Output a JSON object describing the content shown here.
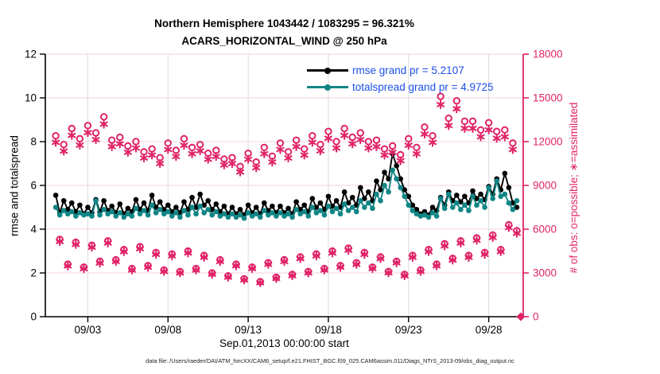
{
  "figure": {
    "title_line1": "Northern Hemisphere 1043442 / 1083295 = 96.321%",
    "title_line2": "ACARS_HORIZONTAL_WIND @ 250 hPa",
    "xlabel": "Sep.01,2013 00:00:00 start",
    "ylabel_left": "rmse and totalspread",
    "ylabel_right": "# of obs: o=possible; ∗=assimilated",
    "caption": "data file: /Users/raeder/DAI/ATM_forcXX/CAM6_setup/f.e21.FHIST_BGC.f09_025.CAM6assim.011/Diags_NTrS_2013-09/obs_diag_output.nc"
  },
  "legend": {
    "position": "top-center-inside",
    "text_color": "#1b50e8",
    "items": [
      {
        "label": "rmse grand pr = 5.2107",
        "color": "#000000"
      },
      {
        "label": "totalspread grand pr = 4.9725",
        "color": "#108585"
      }
    ]
  },
  "colors": {
    "pink": "#e02468",
    "teal": "#108585",
    "black": "#000000",
    "grid_pink": "#f5d0dd",
    "grid_gray": "#dcdcdc",
    "legend_blue": "#1b50e8"
  },
  "chart_data": {
    "type": "line",
    "title": "Northern Hemisphere 1043442 / 1083295 = 96.321% | ACARS_HORIZONTAL_WIND @ 250 hPa",
    "grid": true,
    "x_domain_days": [
      -0.65,
      29.15
    ],
    "time": {
      "start_day": 0,
      "step_days": 0.25,
      "count": 117,
      "start_label": "Sep.01,2013 00:00:00"
    },
    "x_ticks": [
      {
        "t": 2,
        "label": "09/03"
      },
      {
        "t": 7,
        "label": "09/08"
      },
      {
        "t": 12,
        "label": "09/13"
      },
      {
        "t": 17,
        "label": "09/18"
      },
      {
        "t": 22,
        "label": "09/23"
      },
      {
        "t": 27,
        "label": "09/28"
      }
    ],
    "left_axis": {
      "label": "rmse and totalspread",
      "min": 0,
      "max": 12,
      "ticks": [
        0,
        2,
        4,
        6,
        8,
        10,
        12
      ]
    },
    "right_axis": {
      "label": "# of obs: o=possible; ∗=assimilated",
      "min": 0,
      "max": 18000,
      "ticks": [
        0,
        3000,
        6000,
        9000,
        12000,
        15000,
        18000
      ]
    },
    "series": [
      {
        "name": "rmse",
        "axis": "left",
        "marker": "filled-circle",
        "color": "#000000",
        "grand_value": 5.2107,
        "values": [
          5.55,
          4.75,
          5.3,
          4.9,
          5.2,
          4.8,
          5.1,
          4.7,
          5.0,
          4.75,
          5.35,
          4.8,
          5.3,
          4.85,
          5.05,
          4.75,
          5.15,
          4.7,
          4.95,
          4.8,
          5.35,
          4.9,
          5.2,
          4.85,
          5.55,
          5.0,
          5.25,
          4.9,
          5.1,
          4.8,
          5.0,
          4.75,
          5.25,
          4.9,
          5.45,
          5.0,
          5.6,
          5.1,
          5.3,
          4.9,
          5.15,
          4.8,
          5.05,
          4.7,
          5.0,
          4.7,
          4.9,
          4.65,
          5.1,
          4.75,
          5.0,
          4.7,
          5.2,
          4.85,
          5.05,
          4.75,
          5.05,
          4.75,
          4.95,
          4.7,
          5.25,
          4.9,
          5.1,
          4.8,
          5.4,
          5.0,
          5.2,
          4.9,
          5.5,
          5.05,
          5.3,
          5.0,
          5.7,
          5.2,
          5.45,
          5.1,
          5.9,
          5.4,
          5.7,
          5.3,
          6.2,
          5.8,
          6.6,
          6.3,
          7.45,
          6.9,
          6.3,
          5.8,
          5.5,
          5.1,
          4.9,
          4.7,
          4.8,
          4.65,
          5.0,
          4.85,
          5.45,
          5.1,
          5.7,
          5.3,
          5.55,
          5.25,
          5.5,
          5.2,
          5.75,
          5.4,
          5.6,
          5.35,
          5.95,
          5.6,
          6.3,
          5.8,
          6.55,
          5.9,
          5.2,
          5.0,
          null
        ]
      },
      {
        "name": "totalspread",
        "axis": "left",
        "marker": "filled-circle",
        "color": "#108585",
        "grand_value": 4.9725,
        "values": [
          5.0,
          4.65,
          4.85,
          4.7,
          4.8,
          4.6,
          4.75,
          4.65,
          4.7,
          4.6,
          5.3,
          4.65,
          4.9,
          4.7,
          4.8,
          4.6,
          4.75,
          4.55,
          4.7,
          4.6,
          4.95,
          4.7,
          4.85,
          4.65,
          5.1,
          4.75,
          4.9,
          4.7,
          4.8,
          4.6,
          4.75,
          4.55,
          4.85,
          4.65,
          5.0,
          4.7,
          5.05,
          4.75,
          4.9,
          4.65,
          4.8,
          4.6,
          4.7,
          4.55,
          4.7,
          4.55,
          4.65,
          4.5,
          4.75,
          4.6,
          4.7,
          4.55,
          4.85,
          4.65,
          4.75,
          4.6,
          4.75,
          4.6,
          4.7,
          4.55,
          4.9,
          4.7,
          4.8,
          4.6,
          5.0,
          4.75,
          4.85,
          4.65,
          5.05,
          4.8,
          4.95,
          4.7,
          5.15,
          4.85,
          5.0,
          4.8,
          5.3,
          5.0,
          5.2,
          4.95,
          5.6,
          5.3,
          6.0,
          5.7,
          6.7,
          6.3,
          5.9,
          5.5,
          5.1,
          4.85,
          4.7,
          4.6,
          4.65,
          4.55,
          4.75,
          4.6,
          5.4,
          4.95,
          5.6,
          5.0,
          5.2,
          4.9,
          5.1,
          4.85,
          5.5,
          5.1,
          5.3,
          5.0,
          5.9,
          5.4,
          6.2,
          5.5,
          5.6,
          5.2,
          4.9,
          5.3,
          null
        ]
      },
      {
        "name": "possible",
        "axis": "right",
        "marker": "open-circle",
        "color": "#e02468",
        "values": [
          12400,
          5300,
          11800,
          3600,
          12900,
          5100,
          12200,
          3400,
          13100,
          4900,
          12600,
          3800,
          13700,
          5200,
          12100,
          3900,
          12300,
          4600,
          11700,
          3300,
          12000,
          4800,
          11300,
          3500,
          11500,
          4400,
          10900,
          3200,
          11900,
          4300,
          11400,
          3100,
          12200,
          4500,
          11600,
          3300,
          11800,
          4200,
          11200,
          3000,
          11400,
          3900,
          10800,
          2800,
          10900,
          3600,
          10300,
          2600,
          11200,
          3400,
          10600,
          2400,
          11600,
          3700,
          11000,
          2700,
          11900,
          3900,
          11300,
          2900,
          12100,
          4100,
          11500,
          3100,
          12400,
          4300,
          11800,
          3300,
          12700,
          4500,
          12000,
          3500,
          12900,
          4700,
          12300,
          3700,
          12600,
          4400,
          12000,
          3400,
          12100,
          4100,
          11500,
          3100,
          11700,
          3800,
          11100,
          2900,
          12200,
          4200,
          11600,
          3200,
          13000,
          4600,
          12400,
          3600,
          15100,
          5000,
          13600,
          4000,
          14800,
          5200,
          13400,
          4200,
          13400,
          5400,
          12800,
          4400,
          13300,
          5600,
          12700,
          4600,
          12800,
          6300,
          11900,
          5900,
          0
        ]
      },
      {
        "name": "assimilated",
        "axis": "right",
        "marker": "asterisk",
        "color": "#e02468",
        "values": [
          11950,
          5150,
          11350,
          3480,
          12430,
          4950,
          11760,
          3290,
          12620,
          4760,
          12140,
          3680,
          13200,
          5050,
          11660,
          3780,
          11850,
          4460,
          11270,
          3200,
          11560,
          4660,
          10880,
          3390,
          11080,
          4270,
          10500,
          3100,
          11460,
          4170,
          10980,
          3000,
          11750,
          4370,
          11170,
          3200,
          11370,
          4070,
          10790,
          2910,
          10980,
          3780,
          10400,
          2710,
          10500,
          3490,
          9920,
          2520,
          10790,
          3300,
          10210,
          2330,
          11170,
          3590,
          10600,
          2620,
          11460,
          3780,
          10880,
          2810,
          11660,
          3980,
          11080,
          3000,
          11950,
          4170,
          11370,
          3200,
          12230,
          4370,
          11560,
          3390,
          12430,
          4560,
          11850,
          3590,
          12140,
          4270,
          11560,
          3300,
          11660,
          3980,
          11080,
          3010,
          11270,
          3690,
          10690,
          2810,
          11750,
          4070,
          11170,
          3100,
          12520,
          4460,
          11950,
          3490,
          14540,
          4850,
          13100,
          3880,
          14250,
          5050,
          12910,
          4070,
          12910,
          5240,
          12330,
          4270,
          12810,
          5430,
          12230,
          4460,
          12330,
          6110,
          11460,
          5720,
          0
        ]
      }
    ],
    "zero_obs_marker": {
      "marker": "filled-diamond",
      "color": "#e02468",
      "note": "final bin has 0 obs, drawn as diamond at axis"
    }
  }
}
